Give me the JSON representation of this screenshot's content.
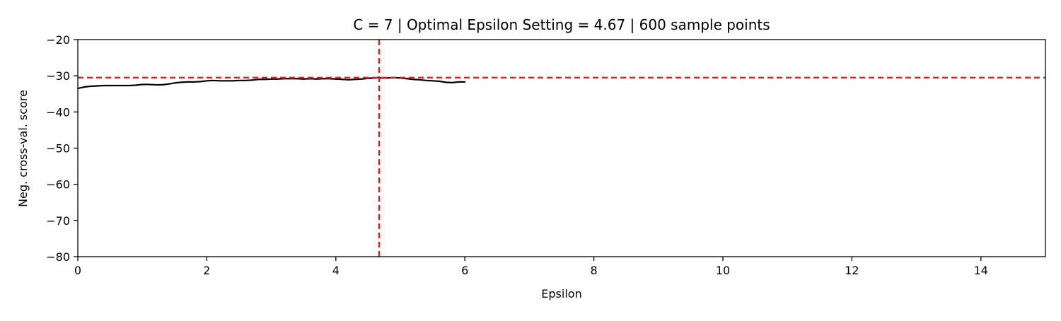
{
  "chart_data": {
    "type": "line",
    "title": "C = 7 | Optimal Epsilon Setting = 4.67 | 600 sample points",
    "xlabel": "Epsilon",
    "ylabel": "Neg. cross-val. score",
    "xlim": [
      0,
      15
    ],
    "ylim": [
      -80,
      -20
    ],
    "xticks": [
      0,
      2,
      4,
      6,
      8,
      10,
      12,
      14
    ],
    "yticks": [
      -80,
      -70,
      -60,
      -50,
      -40,
      -30,
      -20
    ],
    "xtick_labels": [
      "0",
      "2",
      "4",
      "6",
      "8",
      "10",
      "12",
      "14"
    ],
    "ytick_labels": [
      "−80",
      "−70",
      "−60",
      "−50",
      "−40",
      "−30",
      "−20"
    ],
    "grid": false,
    "legend": "none",
    "series": [
      {
        "color": "#000000",
        "style": "solid",
        "x": [
          0,
          0.1,
          0.2,
          0.3,
          0.4,
          0.5,
          0.6,
          0.7,
          0.8,
          0.9,
          1.0,
          1.1,
          1.2,
          1.3,
          1.4,
          1.5,
          1.6,
          1.7,
          1.8,
          1.9,
          2.0,
          2.1,
          2.2,
          2.3,
          2.4,
          2.5,
          2.6,
          2.7,
          2.8,
          2.9,
          3.0,
          3.1,
          3.2,
          3.3,
          3.4,
          3.5,
          3.6,
          3.7,
          3.8,
          3.9,
          4.0,
          4.1,
          4.2,
          4.3,
          4.4,
          4.5,
          4.6,
          4.67,
          4.7,
          4.8,
          4.9,
          5.0,
          5.1,
          5.2,
          5.3,
          5.4,
          5.5,
          5.6,
          5.7,
          5.8,
          5.9,
          6.0
        ],
        "y": [
          -33.5,
          -33.1,
          -32.9,
          -32.8,
          -32.7,
          -32.7,
          -32.7,
          -32.7,
          -32.7,
          -32.6,
          -32.4,
          -32.4,
          -32.5,
          -32.5,
          -32.3,
          -32.0,
          -31.8,
          -31.7,
          -31.7,
          -31.6,
          -31.4,
          -31.3,
          -31.4,
          -31.4,
          -31.4,
          -31.3,
          -31.3,
          -31.2,
          -31.0,
          -31.0,
          -30.9,
          -30.9,
          -30.8,
          -30.8,
          -30.8,
          -30.9,
          -30.8,
          -30.9,
          -30.8,
          -30.8,
          -30.9,
          -31.0,
          -31.1,
          -31.0,
          -30.9,
          -30.7,
          -30.6,
          -30.5,
          -30.6,
          -30.6,
          -30.5,
          -30.6,
          -30.8,
          -31.0,
          -31.1,
          -31.3,
          -31.4,
          -31.5,
          -31.8,
          -31.9,
          -31.7,
          -31.7
        ]
      }
    ],
    "reference_lines": [
      {
        "orientation": "vertical",
        "value": 4.67,
        "color": "#e8191b",
        "style": "dashed"
      },
      {
        "orientation": "horizontal",
        "value": -30.5,
        "color": "#e8191b",
        "style": "dashed"
      }
    ]
  }
}
